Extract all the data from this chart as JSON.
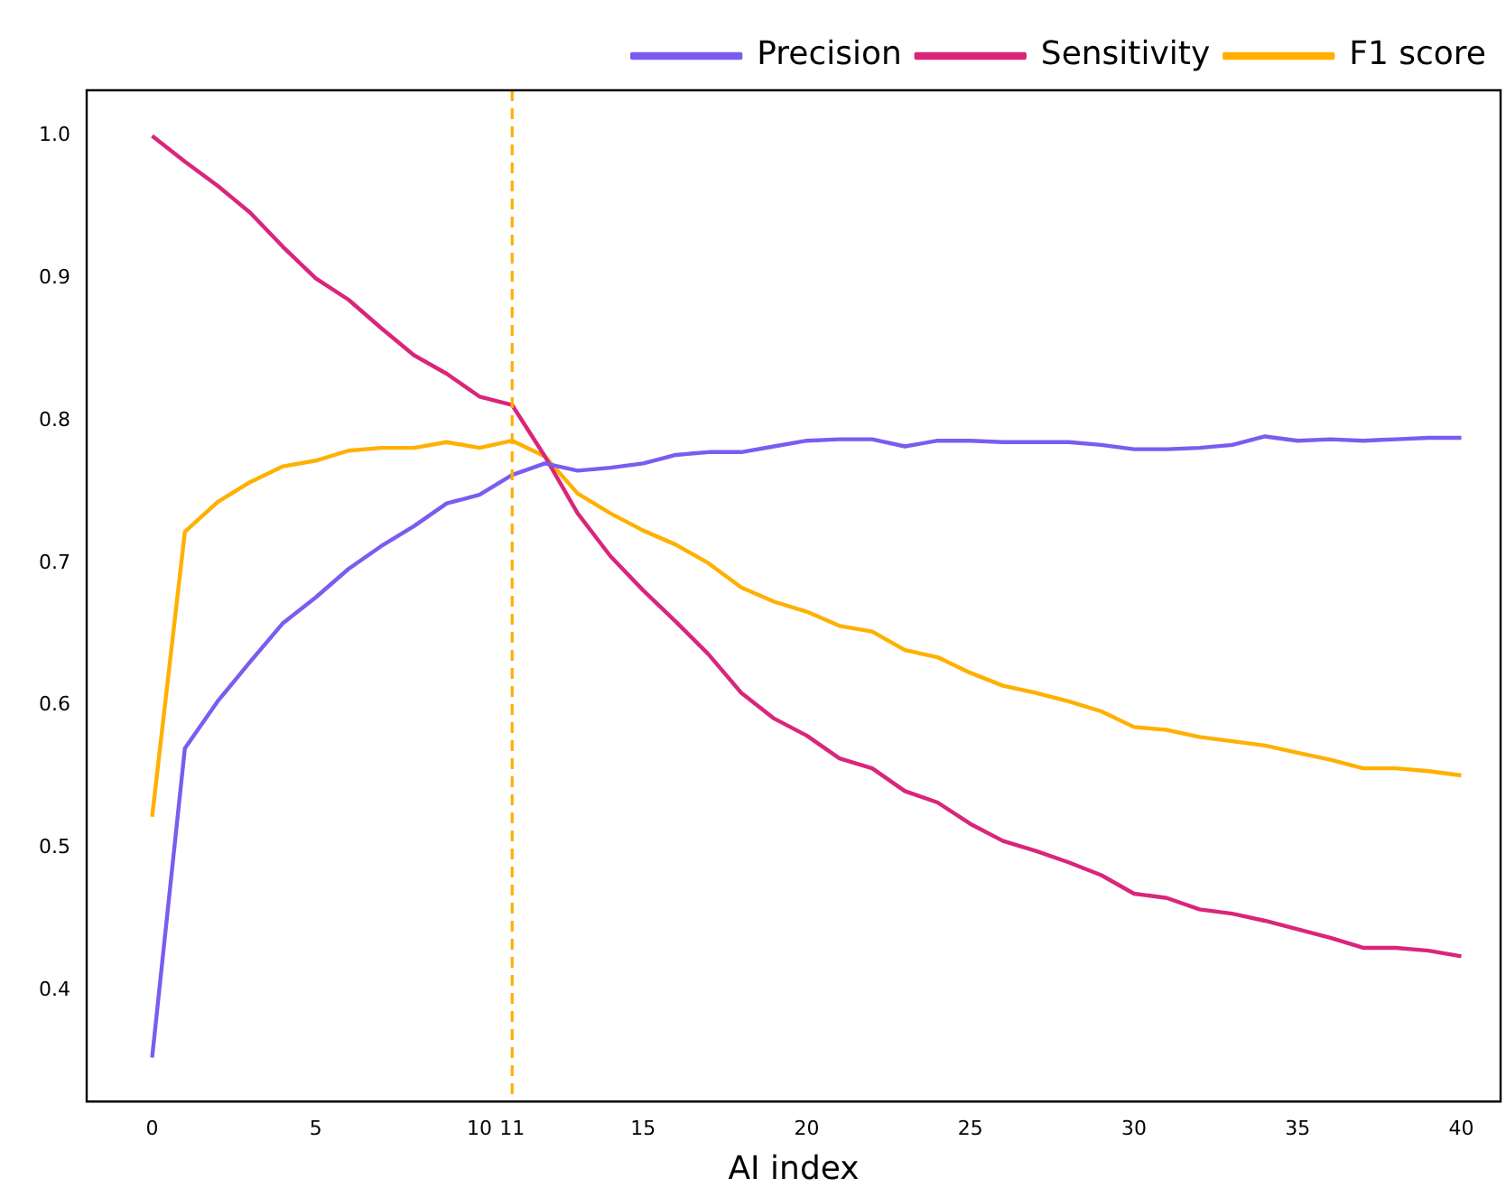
{
  "chart_data": {
    "type": "line",
    "xlabel": "AI index",
    "x": [
      0,
      1,
      2,
      3,
      4,
      5,
      6,
      7,
      8,
      9,
      10,
      11,
      12,
      13,
      14,
      15,
      16,
      17,
      18,
      19,
      20,
      21,
      22,
      23,
      24,
      25,
      26,
      27,
      28,
      29,
      30,
      31,
      32,
      33,
      34,
      35,
      36,
      37,
      38,
      39,
      40
    ],
    "series": [
      {
        "name": "Precision",
        "color": "#7b5cf0",
        "values": [
          0.353,
          0.57,
          0.603,
          0.631,
          0.658,
          0.676,
          0.696,
          0.712,
          0.726,
          0.742,
          0.748,
          0.762,
          0.77,
          0.765,
          0.767,
          0.77,
          0.776,
          0.778,
          0.778,
          0.782,
          0.786,
          0.787,
          0.787,
          0.782,
          0.786,
          0.786,
          0.785,
          0.785,
          0.785,
          0.783,
          0.78,
          0.78,
          0.781,
          0.783,
          0.789,
          0.786,
          0.787,
          0.786,
          0.787,
          0.788,
          0.788
        ]
      },
      {
        "name": "Sensitivity",
        "color": "#d9267a",
        "values": [
          1.0,
          0.982,
          0.965,
          0.946,
          0.922,
          0.9,
          0.885,
          0.865,
          0.846,
          0.833,
          0.817,
          0.811,
          0.775,
          0.735,
          0.705,
          0.681,
          0.659,
          0.636,
          0.609,
          0.591,
          0.579,
          0.563,
          0.556,
          0.54,
          0.532,
          0.517,
          0.505,
          0.498,
          0.49,
          0.481,
          0.468,
          0.465,
          0.457,
          0.454,
          0.449,
          0.443,
          0.437,
          0.43,
          0.43,
          0.428,
          0.424
        ]
      },
      {
        "name": "F1 score",
        "color": "#ffb000",
        "values": [
          0.522,
          0.722,
          0.743,
          0.757,
          0.768,
          0.772,
          0.779,
          0.781,
          0.781,
          0.785,
          0.781,
          0.786,
          0.775,
          0.749,
          0.735,
          0.723,
          0.713,
          0.7,
          0.683,
          0.673,
          0.666,
          0.656,
          0.652,
          0.639,
          0.634,
          0.623,
          0.614,
          0.609,
          0.603,
          0.596,
          0.585,
          0.583,
          0.578,
          0.575,
          0.572,
          0.567,
          0.562,
          0.556,
          0.556,
          0.554,
          0.551
        ]
      }
    ],
    "xlim": [
      -2,
      41.2
    ],
    "xticks": [
      0,
      5,
      10,
      11,
      15,
      20,
      25,
      30,
      35,
      40
    ],
    "ylim": [
      0.322,
      1.032
    ],
    "yticks": [
      {
        "value": 0.4,
        "label": "0.4"
      },
      {
        "value": 0.5,
        "label": "0.5"
      },
      {
        "value": 0.6,
        "label": "0.6"
      },
      {
        "value": 0.7,
        "label": "0.7"
      },
      {
        "value": 0.8,
        "label": "0.8"
      },
      {
        "value": 0.9,
        "label": "0.9"
      },
      {
        "value": 1.0,
        "label": "1.0"
      }
    ],
    "ref_lines": [
      {
        "axis": "x",
        "value": 11,
        "color": "#ffb000",
        "line_style": "dashed"
      }
    ],
    "legend": "top right",
    "grid": false,
    "marker": "none",
    "line_style": "solid"
  }
}
